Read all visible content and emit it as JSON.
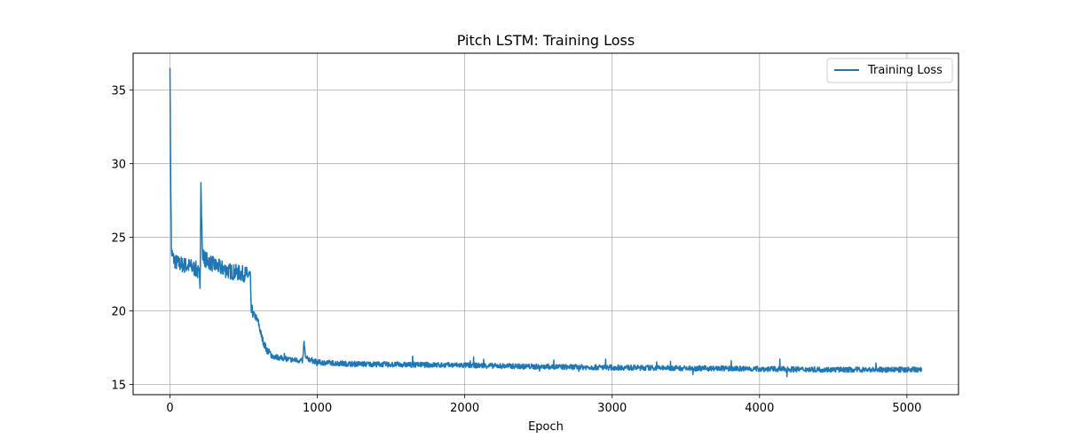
{
  "chart_data": {
    "type": "line",
    "title": "Pitch LSTM: Training Loss",
    "xlabel": "Epoch",
    "ylabel": "",
    "xlim": [
      -250,
      5350
    ],
    "ylim": [
      14.3,
      37.5
    ],
    "xticks": [
      0,
      1000,
      2000,
      3000,
      4000,
      5000
    ],
    "xtick_labels": [
      "0",
      "1000",
      "2000",
      "3000",
      "4000",
      "5000"
    ],
    "yticks": [
      15,
      20,
      25,
      30,
      35
    ],
    "ytick_labels": [
      "15",
      "20",
      "25",
      "30",
      "35"
    ],
    "grid": true,
    "legend_position": "upper right",
    "series": [
      {
        "name": "Training Loss",
        "color": "#1f77b4",
        "x": [
          0,
          5,
          10,
          20,
          40,
          60,
          100,
          140,
          160,
          180,
          195,
          200,
          205,
          210,
          220,
          240,
          300,
          400,
          500,
          545,
          550,
          560,
          580,
          600,
          620,
          640,
          660,
          680,
          700,
          750,
          800,
          900,
          910,
          920,
          1000,
          1200,
          1500,
          2000,
          2500,
          3000,
          3500,
          4000,
          4500,
          5000,
          5100
        ],
        "y": [
          36.5,
          29.0,
          24.0,
          23.6,
          23.3,
          23.2,
          23.1,
          23.0,
          22.9,
          22.8,
          22.5,
          22.3,
          22.0,
          28.7,
          23.8,
          23.5,
          23.1,
          22.7,
          22.5,
          22.4,
          20.0,
          19.8,
          19.6,
          19.2,
          18.3,
          17.7,
          17.3,
          17.1,
          16.9,
          16.8,
          16.7,
          16.6,
          17.9,
          16.8,
          16.5,
          16.4,
          16.35,
          16.3,
          16.2,
          16.15,
          16.1,
          16.05,
          16.0,
          16.0,
          16.0
        ]
      }
    ]
  }
}
